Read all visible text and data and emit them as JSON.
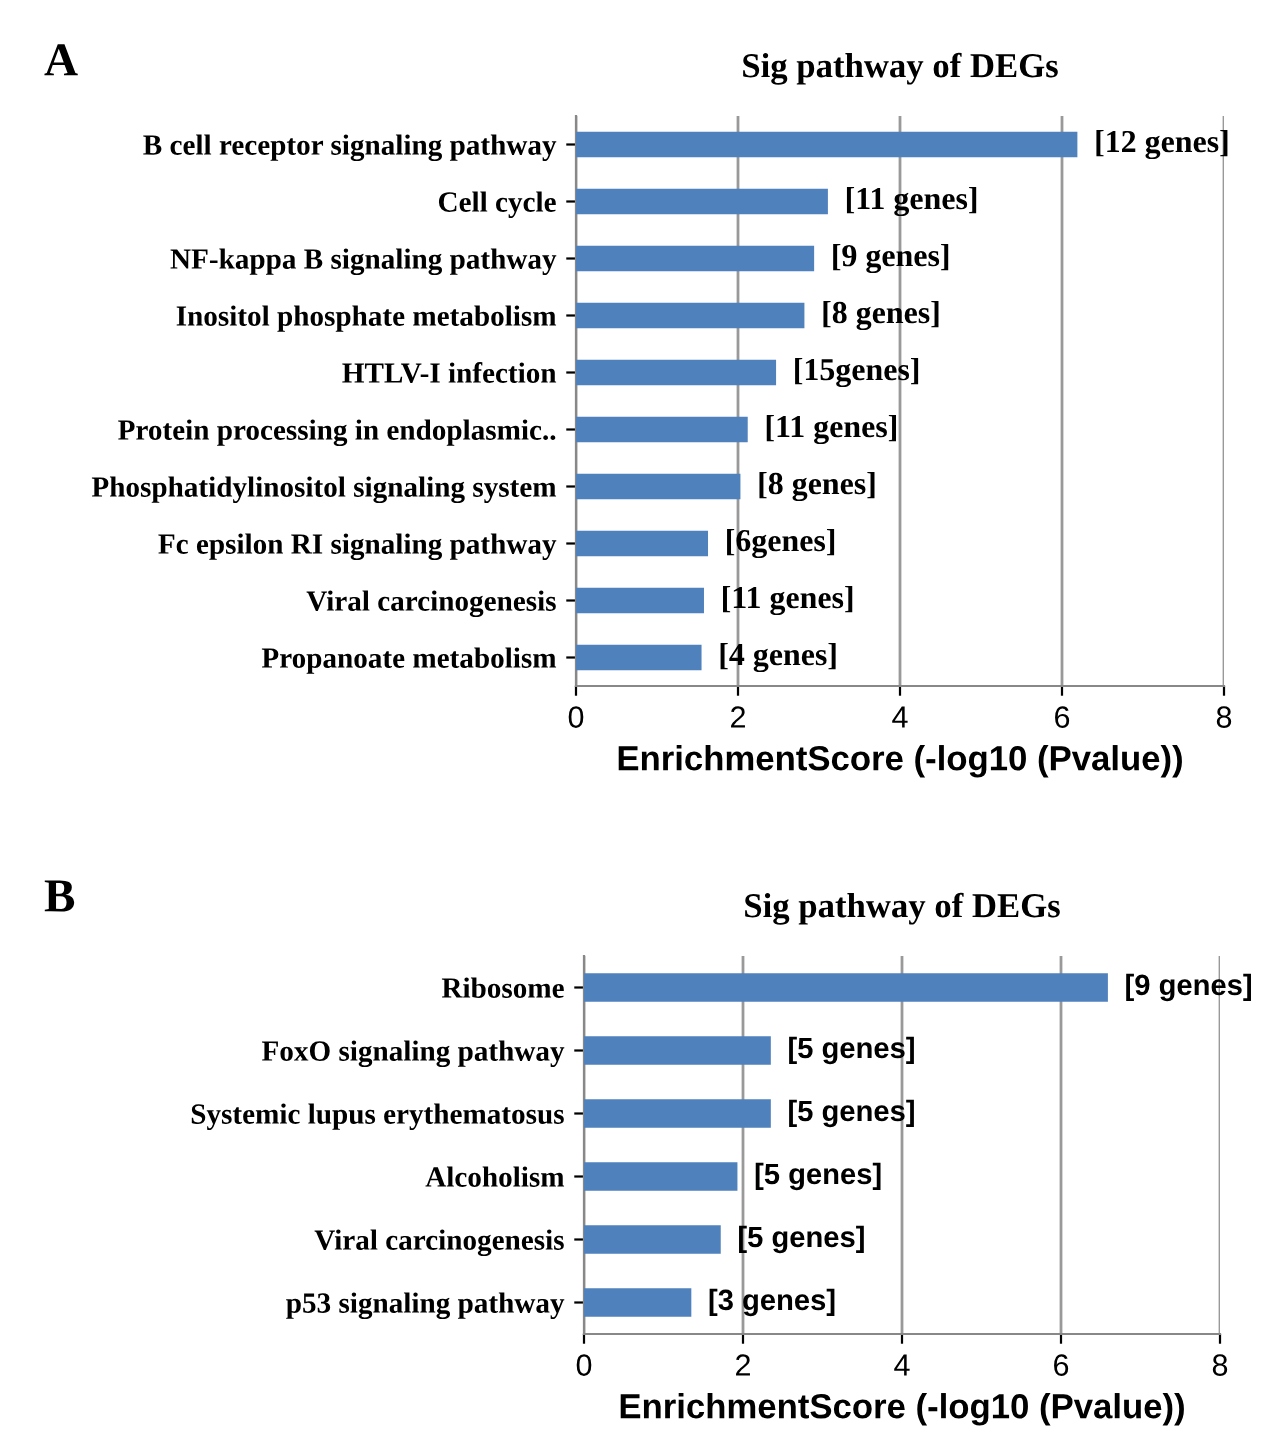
{
  "chart_data": [
    {
      "type": "bar",
      "orientation": "horizontal",
      "title": "Sig pathway of DEGs",
      "xlabel": "EnrichmentScore (-log10 (Pvalue))",
      "categories": [
        "B cell receptor signaling pathway",
        "Cell cycle",
        "NF-kappa B signaling pathway",
        "Inositol phosphate metabolism",
        "HTLV-I infection",
        "Protein processing in endoplasmic..",
        "Phosphatidylinositol signaling system",
        "Fc epsilon RI signaling pathway",
        "Viral carcinogenesis",
        "Propanoate metabolism"
      ],
      "values": [
        6.19,
        3.11,
        2.94,
        2.82,
        2.47,
        2.12,
        2.03,
        1.63,
        1.58,
        1.55
      ],
      "annotations": [
        "A",
        {
          "text": "[12 genes]",
          "x": 6.19,
          "y": "B cell receptor signaling pathway"
        },
        {
          "text": "[11 genes]",
          "x": 3.11,
          "y": "Cell cycle"
        },
        {
          "text": "[9 genes]",
          "x": 2.94,
          "y": "NF-kappa B signaling pathway"
        },
        {
          "text": "[8 genes]",
          "x": 2.82,
          "y": "Inositol phosphate metabolism"
        },
        {
          "text": "[15genes]",
          "x": 2.47,
          "y": "HTLV-I infection"
        },
        {
          "text": "[11 genes]",
          "x": 2.12,
          "y": "Protein processing in endoplasmic.."
        },
        {
          "text": "[8 genes]",
          "x": 2.03,
          "y": "Phosphatidylinositol signaling system"
        },
        {
          "text": "[6genes]",
          "x": 1.63,
          "y": "Fc epsilon RI signaling pathway"
        },
        {
          "text": "[11 genes]",
          "x": 1.58,
          "y": "Viral carcinogenesis"
        },
        {
          "text": "[4 genes]",
          "x": 1.55,
          "y": "Propanoate metabolism"
        }
      ],
      "color": "#4f81bd",
      "xlim": [
        0,
        8
      ],
      "xticks": [
        0,
        2,
        4,
        6,
        8
      ],
      "grid": "x"
    },
    {
      "type": "bar",
      "orientation": "horizontal",
      "title": "Sig pathway of DEGs",
      "xlabel": "EnrichmentScore (-log10 (Pvalue))",
      "categories": [
        "Ribosome",
        "FoxO signaling pathway",
        "Systemic lupus erythematosus",
        "Alcoholism",
        "Viral carcinogenesis",
        "p53 signaling pathway"
      ],
      "values": [
        6.59,
        2.35,
        2.35,
        1.93,
        1.72,
        1.35
      ],
      "annotations": [
        "B",
        {
          "text": "[9 genes]",
          "x": 6.59,
          "y": "Ribosome"
        },
        {
          "text": "[5 genes]",
          "x": 2.35,
          "y": "FoxO signaling pathway"
        },
        {
          "text": "[5 genes]",
          "x": 2.35,
          "y": "Systemic lupus erythematosus"
        },
        {
          "text": "[5 genes]",
          "x": 1.93,
          "y": "Alcoholism"
        },
        {
          "text": "[5 genes]",
          "x": 1.72,
          "y": "Viral carcinogenesis"
        },
        {
          "text": "[3 genes]",
          "x": 1.35,
          "y": "p53 signaling pathway"
        }
      ],
      "color": "#4f81bd",
      "xlim": [
        0,
        8
      ],
      "xticks": [
        0,
        2,
        4,
        6,
        8
      ],
      "grid": "x"
    }
  ]
}
